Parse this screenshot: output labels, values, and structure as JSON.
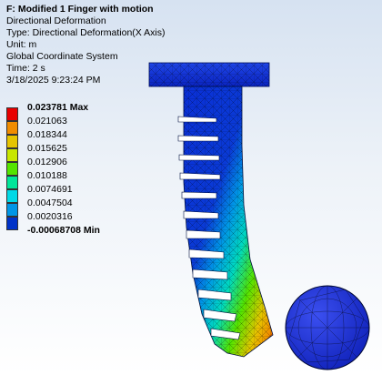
{
  "info": {
    "title": "F: Modified 1 Finger with motion",
    "lines": [
      "Directional Deformation",
      "Type: Directional Deformation(X Axis)",
      "Unit: m",
      "Global Coordinate System",
      "Time: 2 s",
      "3/18/2025 9:23:24 PM"
    ]
  },
  "legend": {
    "max_label": "0.023781 Max",
    "min_label": "-0.00068708 Min",
    "values": [
      "0.021063",
      "0.018344",
      "0.015625",
      "0.012906",
      "0.010188",
      "0.0074691",
      "0.0047504",
      "0.0020316"
    ],
    "colors": [
      "#e80000",
      "#f08c00",
      "#e6c400",
      "#c8e600",
      "#54e400",
      "#00e69a",
      "#00d9e6",
      "#0096e6",
      "#0032c8"
    ]
  },
  "model": {
    "mount_color": "#0a2fd6",
    "sphere_color": "#1a2fd0",
    "mesh_color": "#000000"
  }
}
